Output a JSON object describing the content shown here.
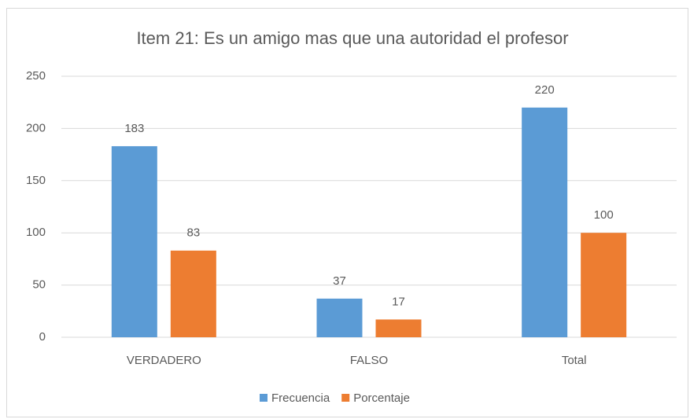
{
  "chart_data": {
    "type": "bar",
    "title": "Item 21: Es un amigo mas que una autoridad el profesor",
    "categories": [
      "VERDADERO",
      "FALSO",
      "Total"
    ],
    "series": [
      {
        "name": "Frecuencia",
        "color": "#5b9bd5",
        "values": [
          183,
          37,
          220
        ]
      },
      {
        "name": "Porcentaje",
        "color": "#ed7d31",
        "values": [
          83,
          17,
          100
        ]
      }
    ],
    "ylim": [
      0,
      250
    ],
    "yticks": [
      0,
      50,
      100,
      150,
      200,
      250
    ],
    "grid": true,
    "data_labels": true,
    "legend": "bottom"
  }
}
